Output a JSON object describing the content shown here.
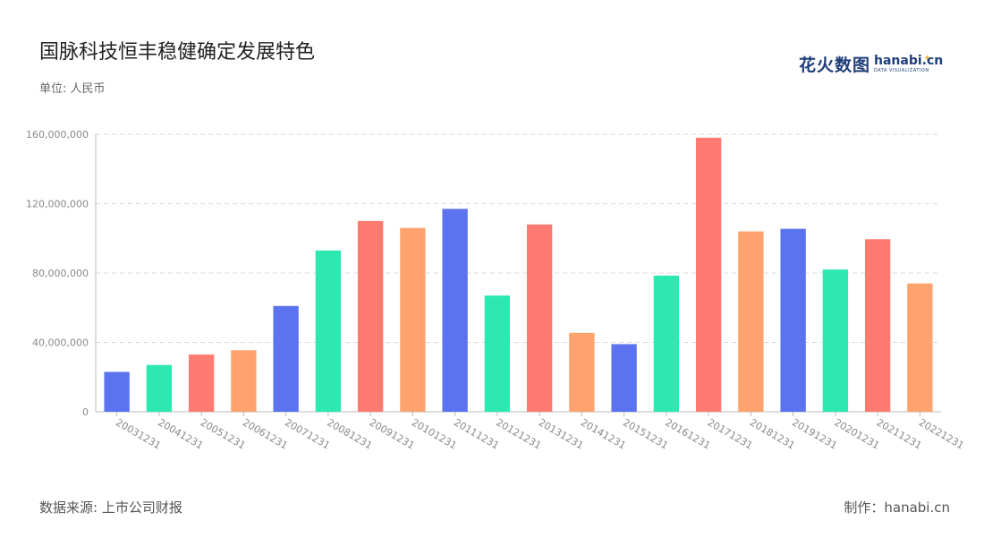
{
  "title": "国脉科技恒丰稳健确定发展特色",
  "unit_label": "单位: 人民币",
  "source_label": "数据来源: 上市公司财报",
  "maker_label": "制作：hanabi.cn",
  "logo": {
    "cn": "花火数图",
    "en": "hanabi.cn",
    "sub": "DATA VISUALIZATION",
    "spark_icon": "sparkle-icon"
  },
  "colors": {
    "cycle": [
      "#5b73ef",
      "#2de8b0",
      "#ff7a70",
      "#ffa36e"
    ],
    "grid": "#d9d9d9",
    "axis": "#bbbbbb",
    "tick_text": "#888888"
  },
  "chart_data": {
    "type": "bar",
    "title": "国脉科技恒丰稳健确定发展特色",
    "xlabel": "",
    "ylabel": "",
    "ylim": [
      0,
      160000000
    ],
    "yticks": [
      0,
      40000000,
      80000000,
      120000000,
      160000000
    ],
    "ytick_labels": [
      "0",
      "40,000,000",
      "80,000,000",
      "120,000,000",
      "160,000,000"
    ],
    "grid": true,
    "categories": [
      "20031231",
      "20041231",
      "20051231",
      "20061231",
      "20071231",
      "20081231",
      "20091231",
      "20101231",
      "20111231",
      "20121231",
      "20131231",
      "20141231",
      "20151231",
      "20161231",
      "20171231",
      "20181231",
      "20191231",
      "20201231",
      "20211231",
      "20221231"
    ],
    "values": [
      23000000,
      27000000,
      33000000,
      35500000,
      61000000,
      93000000,
      110000000,
      106000000,
      117000000,
      67000000,
      108000000,
      45500000,
      39000000,
      78500000,
      158000000,
      104000000,
      105500000,
      82000000,
      99500000,
      74000000
    ]
  }
}
